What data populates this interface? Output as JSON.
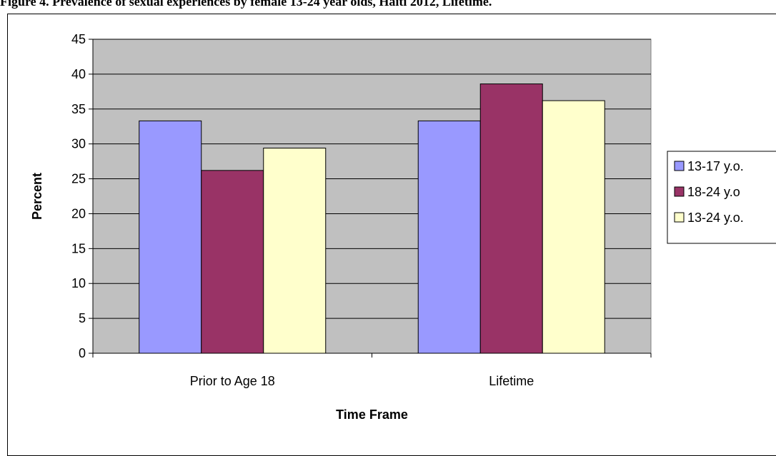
{
  "figure": {
    "caption": "Figure 4. Prevalence of sexual experiences by female 13-24 year olds, Haiti 2012, Lifetime."
  },
  "chart_data": {
    "type": "bar",
    "categories": [
      "Prior to Age 18",
      "Lifetime"
    ],
    "series": [
      {
        "name": "13-17 y.o.",
        "values": [
          33.3,
          33.3
        ],
        "color": "#9999ff"
      },
      {
        "name": "18-24 y.o",
        "values": [
          26.2,
          38.6
        ],
        "color": "#993366"
      },
      {
        "name": "13-24 y.o.",
        "values": [
          29.4,
          36.2
        ],
        "color": "#ffffcc"
      }
    ],
    "xlabel": "Time Frame",
    "ylabel": "Percent",
    "ylim": [
      0,
      45
    ],
    "yticks": [
      0,
      5,
      10,
      15,
      20,
      25,
      30,
      35,
      40,
      45
    ],
    "grid": true,
    "plot_background": "#c0c0c0",
    "legend": "right"
  }
}
